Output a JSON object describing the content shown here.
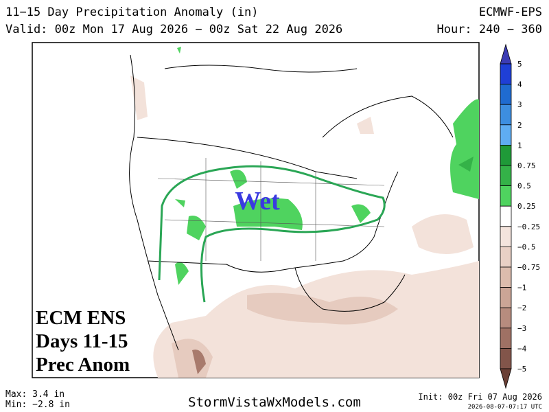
{
  "header": {
    "title": "11−15 Day Precipitation Anomaly (in)",
    "valid": "Valid: 00z Mon 17 Aug 2026 − 00z Sat 22 Aug 2026",
    "model": "ECMWF-EPS",
    "hour": "Hour: 240 − 360"
  },
  "colorbar": {
    "labels": [
      "5",
      "4",
      "3",
      "2",
      "1",
      "0.75",
      "0.5",
      "0.25",
      "−0.25",
      "−0.5",
      "−0.75",
      "−1",
      "−2",
      "−3",
      "−4",
      "−5"
    ],
    "colors": [
      "#3c3cb4",
      "#1f3fd6",
      "#1f6bd0",
      "#3d8ee0",
      "#5fadf2",
      "#1f9a38",
      "#34b248",
      "#4fd35f",
      "#ffffff",
      "#f4e4dd",
      "#e9d0c5",
      "#dcbcad",
      "#cba596",
      "#b78c7e",
      "#9f7164",
      "#82554a",
      "#6a3f35"
    ]
  },
  "annotations": {
    "wet": "Wet",
    "box": [
      "ECM ENS",
      "Days 11-15",
      "Prec Anom"
    ]
  },
  "footer": {
    "max": "Max: 3.4 in",
    "min": "Min: −2.8 in",
    "site": "StormVistaWxModels.com",
    "init": "Init: 00z Fri 07 Aug 2026",
    "stamp": "2026-08-07-07:17 UTC"
  }
}
